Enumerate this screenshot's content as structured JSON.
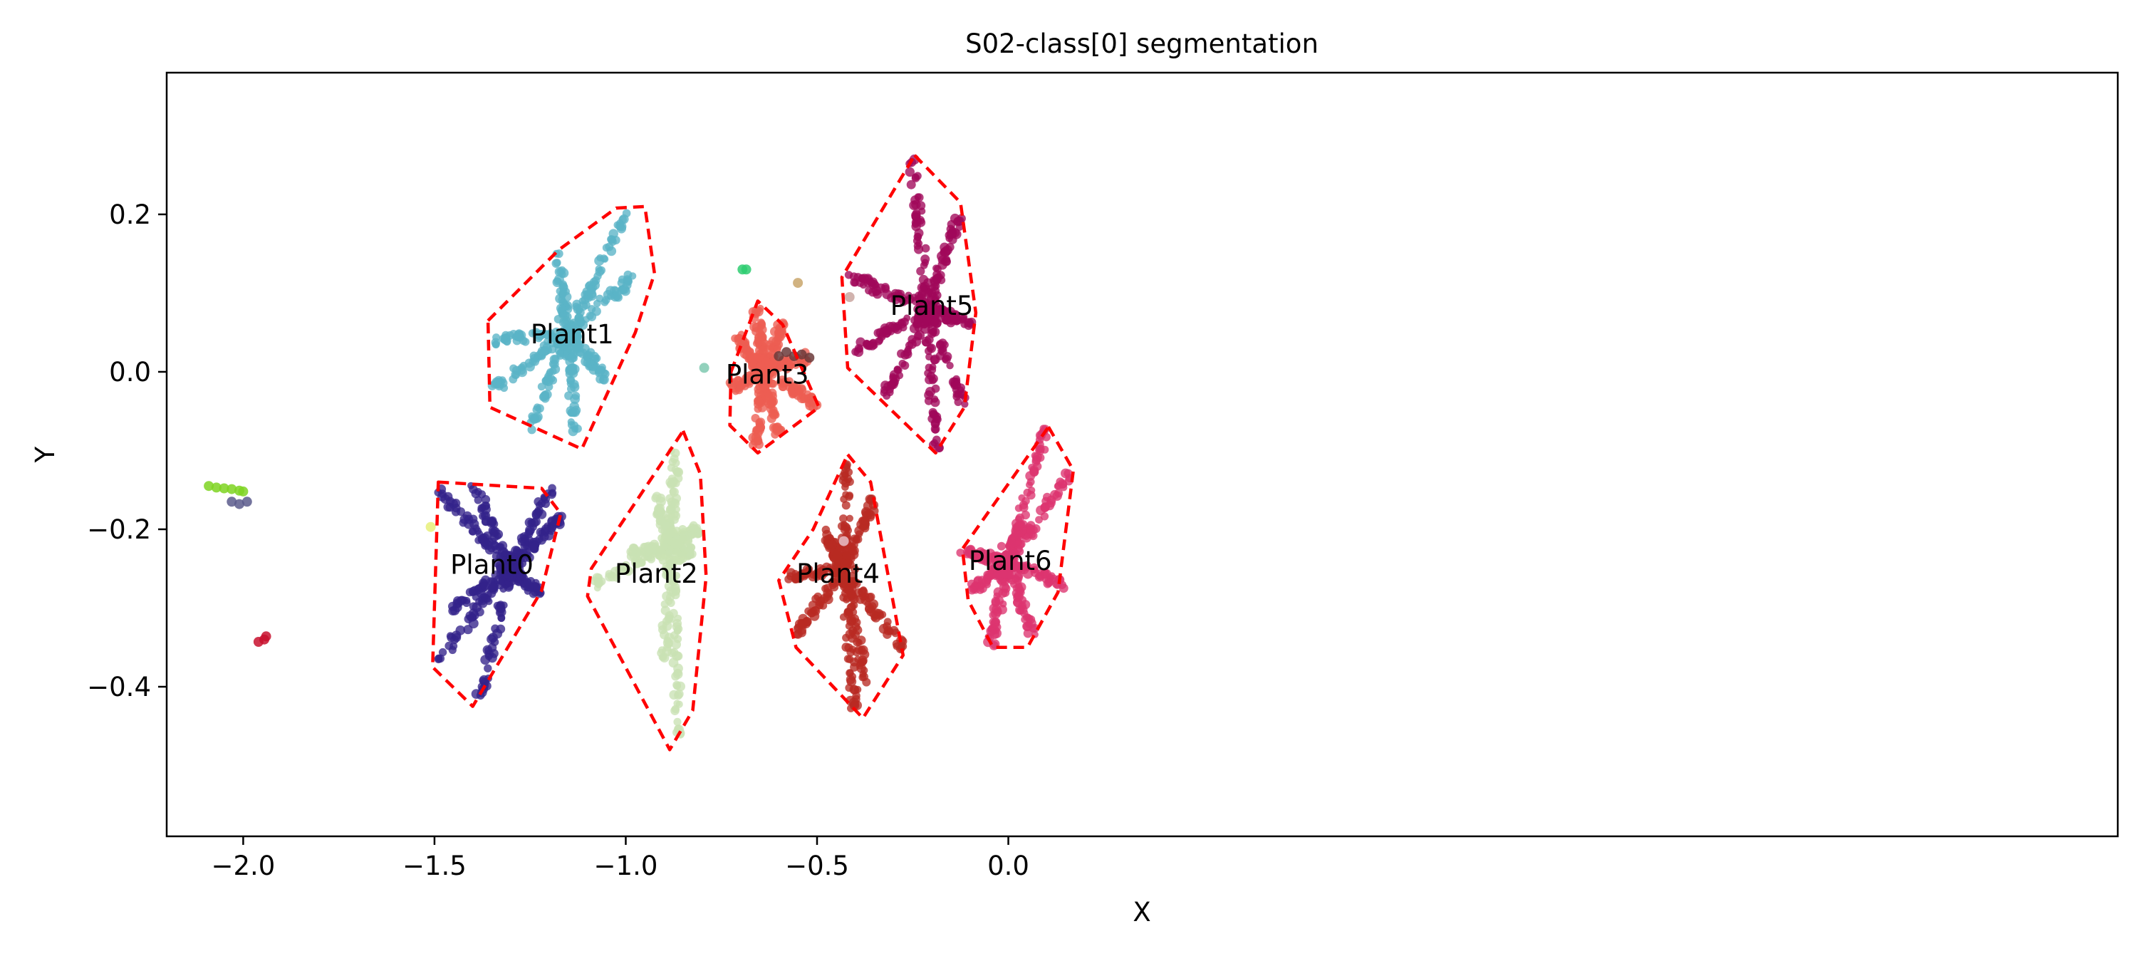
{
  "chart_data": {
    "type": "scatter",
    "title": "S02-class[0] segmentation",
    "xlabel": "X",
    "ylabel": "Y",
    "xlim": [
      -2.2,
      2.9
    ],
    "ylim": [
      -0.59,
      0.38
    ],
    "x_ticks": [
      -2.0,
      -1.5,
      -1.0,
      -0.5,
      0.0
    ],
    "x_tick_labels": [
      "−2.0",
      "−1.5",
      "−1.0",
      "−0.5",
      "0.0"
    ],
    "y_ticks": [
      0.2,
      0.0,
      -0.2,
      -0.4
    ],
    "y_tick_labels": [
      "0.2",
      "0.0",
      "−0.2",
      "−0.4"
    ],
    "grid": false,
    "hull_color": "#ff0000",
    "plants": [
      {
        "name": "Plant0",
        "color": "#33228a",
        "label_pos": [
          -1.35,
          -0.245
        ],
        "center": [
          -1.3,
          -0.25
        ],
        "arms": [
          [
            -1.49,
            -0.15
          ],
          [
            -1.4,
            -0.14
          ],
          [
            -1.2,
            -0.15
          ],
          [
            -1.17,
            -0.185
          ],
          [
            -1.23,
            -0.28
          ],
          [
            -1.38,
            -0.41
          ],
          [
            -1.5,
            -0.37
          ],
          [
            -1.45,
            -0.3
          ]
        ],
        "hull": [
          [
            -1.49,
            -0.14
          ],
          [
            -1.22,
            -0.148
          ],
          [
            -1.17,
            -0.18
          ],
          [
            -1.22,
            -0.278
          ],
          [
            -1.4,
            -0.425
          ],
          [
            -1.505,
            -0.375
          ]
        ]
      },
      {
        "name": "Plant1",
        "color": "#5ab4c6",
        "label_pos": [
          -1.14,
          0.048
        ],
        "center": [
          -1.15,
          0.05
        ],
        "arms": [
          [
            -1.35,
            0.04
          ],
          [
            -1.34,
            -0.02
          ],
          [
            -1.18,
            0.15
          ],
          [
            -1.0,
            0.2
          ],
          [
            -0.98,
            0.12
          ],
          [
            -1.05,
            -0.01
          ],
          [
            -1.13,
            -0.08
          ],
          [
            -1.25,
            -0.07
          ]
        ],
        "hull": [
          [
            -1.36,
            0.065
          ],
          [
            -1.175,
            0.155
          ],
          [
            -1.025,
            0.208
          ],
          [
            -0.95,
            0.21
          ],
          [
            -0.925,
            0.125
          ],
          [
            -0.975,
            0.05
          ],
          [
            -1.115,
            -0.098
          ],
          [
            -1.355,
            -0.045
          ]
        ]
      },
      {
        "name": "Plant2",
        "color": "#c9e2b3",
        "label_pos": [
          -0.92,
          -0.256
        ],
        "center": [
          -0.88,
          -0.22
        ],
        "arms": [
          [
            -0.87,
            -0.1
          ],
          [
            -0.81,
            -0.2
          ],
          [
            -0.83,
            -0.23
          ],
          [
            -0.86,
            -0.47
          ],
          [
            -0.9,
            -0.36
          ],
          [
            -1.08,
            -0.27
          ],
          [
            -0.99,
            -0.23
          ],
          [
            -0.92,
            -0.16
          ]
        ],
        "hull": [
          [
            -0.85,
            -0.075
          ],
          [
            -0.805,
            -0.13
          ],
          [
            -0.79,
            -0.26
          ],
          [
            -0.825,
            -0.43
          ],
          [
            -0.885,
            -0.48
          ],
          [
            -1.1,
            -0.285
          ],
          [
            -1.09,
            -0.25
          ]
        ]
      },
      {
        "name": "Plant3",
        "color": "#ed5e52",
        "label_pos": [
          -0.63,
          -0.003
        ],
        "center": [
          -0.64,
          0.0
        ],
        "arms": [
          [
            -0.71,
            0.045
          ],
          [
            -0.72,
            -0.02
          ],
          [
            -0.66,
            0.08
          ],
          [
            -0.59,
            0.06
          ],
          [
            -0.52,
            0.02
          ],
          [
            -0.5,
            -0.04
          ],
          [
            -0.6,
            -0.08
          ],
          [
            -0.66,
            -0.09
          ]
        ],
        "hull": [
          [
            -0.725,
            0.0
          ],
          [
            -0.655,
            0.09
          ],
          [
            -0.59,
            0.06
          ],
          [
            -0.495,
            -0.045
          ],
          [
            -0.655,
            -0.103
          ],
          [
            -0.728,
            -0.068
          ]
        ]
      },
      {
        "name": "Plant4",
        "color": "#b82a22",
        "label_pos": [
          -0.445,
          -0.256
        ],
        "center": [
          -0.43,
          -0.25
        ],
        "arms": [
          [
            -0.42,
            -0.12
          ],
          [
            -0.35,
            -0.16
          ],
          [
            -0.28,
            -0.35
          ],
          [
            -0.37,
            -0.4
          ],
          [
            -0.4,
            -0.43
          ],
          [
            -0.55,
            -0.33
          ],
          [
            -0.58,
            -0.26
          ],
          [
            -0.48,
            -0.2
          ]
        ],
        "hull": [
          [
            -0.42,
            -0.105
          ],
          [
            -0.36,
            -0.14
          ],
          [
            -0.275,
            -0.36
          ],
          [
            -0.38,
            -0.44
          ],
          [
            -0.555,
            -0.35
          ],
          [
            -0.6,
            -0.265
          ],
          [
            -0.51,
            -0.2
          ]
        ]
      },
      {
        "name": "Plant5",
        "color": "#a0085a",
        "label_pos": [
          -0.2,
          0.084
        ],
        "center": [
          -0.21,
          0.08
        ],
        "arms": [
          [
            -0.25,
            0.27
          ],
          [
            -0.13,
            0.2
          ],
          [
            -0.09,
            0.06
          ],
          [
            -0.12,
            -0.04
          ],
          [
            -0.19,
            -0.1
          ],
          [
            -0.32,
            -0.03
          ],
          [
            -0.42,
            0.02
          ],
          [
            -0.41,
            0.12
          ]
        ],
        "hull": [
          [
            -0.245,
            0.275
          ],
          [
            -0.125,
            0.215
          ],
          [
            -0.085,
            0.075
          ],
          [
            -0.115,
            -0.045
          ],
          [
            -0.19,
            -0.103
          ],
          [
            -0.42,
            0.005
          ],
          [
            -0.435,
            0.12
          ]
        ]
      },
      {
        "name": "Plant6",
        "color": "#dc3470",
        "label_pos": [
          0.005,
          -0.24
        ],
        "center": [
          0.0,
          -0.24
        ],
        "arms": [
          [
            0.1,
            -0.07
          ],
          [
            0.16,
            -0.13
          ],
          [
            0.14,
            -0.27
          ],
          [
            0.06,
            -0.33
          ],
          [
            -0.05,
            -0.35
          ],
          [
            -0.1,
            -0.28
          ],
          [
            -0.12,
            -0.23
          ],
          [
            0.04,
            -0.18
          ]
        ],
        "hull": [
          [
            0.105,
            -0.07
          ],
          [
            0.17,
            -0.125
          ],
          [
            0.13,
            -0.28
          ],
          [
            0.05,
            -0.35
          ],
          [
            -0.04,
            -0.35
          ],
          [
            -0.105,
            -0.29
          ],
          [
            -0.12,
            -0.225
          ]
        ]
      }
    ],
    "outliers": [
      {
        "color": "#7ed321",
        "points": [
          [
            -2.09,
            -0.145
          ],
          [
            -2.07,
            -0.147
          ],
          [
            -2.05,
            -0.148
          ],
          [
            -2.03,
            -0.149
          ],
          [
            -2.01,
            -0.151
          ],
          [
            -2.0,
            -0.152
          ]
        ]
      },
      {
        "color": "#5a5a8c",
        "points": [
          [
            -2.03,
            -0.165
          ],
          [
            -2.01,
            -0.168
          ],
          [
            -1.99,
            -0.165
          ]
        ]
      },
      {
        "color": "#c8102e",
        "points": [
          [
            -1.96,
            -0.343
          ],
          [
            -1.945,
            -0.34
          ],
          [
            -1.94,
            -0.336
          ]
        ]
      },
      {
        "color": "#2ecc71",
        "points": [
          [
            -0.695,
            0.13
          ],
          [
            -0.685,
            0.13
          ]
        ]
      },
      {
        "color": "#7fc9b0",
        "points": [
          [
            -0.795,
            0.005
          ]
        ]
      },
      {
        "color": "#c9a66b",
        "points": [
          [
            -0.55,
            0.113
          ]
        ]
      },
      {
        "color": "#6b3a3a",
        "points": [
          [
            -0.6,
            0.02
          ],
          [
            -0.58,
            0.025
          ],
          [
            -0.56,
            0.02
          ],
          [
            -0.54,
            0.022
          ],
          [
            -0.52,
            0.018
          ]
        ]
      },
      {
        "color": "#c9a6a0",
        "points": [
          [
            -0.415,
            0.095
          ]
        ]
      },
      {
        "color": "#e8f07a",
        "points": [
          [
            -1.51,
            -0.197
          ]
        ]
      },
      {
        "color": "#e8c0c8",
        "points": [
          [
            -0.43,
            -0.215
          ]
        ]
      }
    ]
  }
}
